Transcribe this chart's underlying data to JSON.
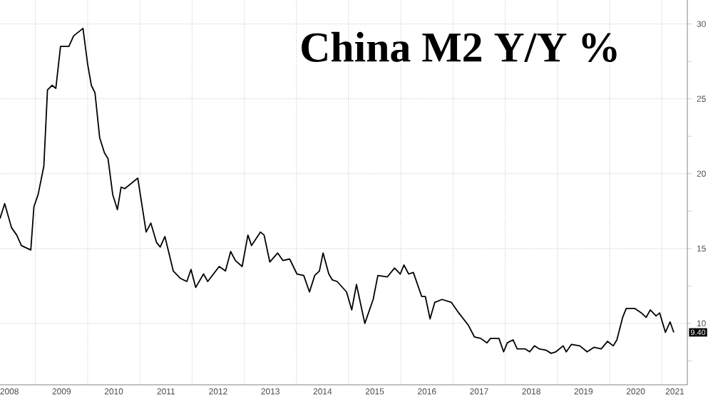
{
  "chart_data": {
    "type": "line",
    "title": "China M2 Y/Y %",
    "x": [
      2008.32,
      2008.41,
      2008.54,
      2008.64,
      2008.73,
      2008.91,
      2008.97,
      2009.05,
      2009.16,
      2009.23,
      2009.32,
      2009.39,
      2009.48,
      2009.64,
      2009.73,
      2009.91,
      2010.0,
      2010.07,
      2010.14,
      2010.23,
      2010.32,
      2010.39,
      2010.48,
      2010.57,
      2010.64,
      2010.71,
      2010.96,
      2011.12,
      2011.21,
      2011.32,
      2011.39,
      2011.48,
      2011.64,
      2011.78,
      2011.9,
      2011.98,
      2012.07,
      2012.22,
      2012.3,
      2012.52,
      2012.64,
      2012.74,
      2012.83,
      2012.96,
      2013.07,
      2013.14,
      2013.31,
      2013.38,
      2013.49,
      2013.64,
      2013.74,
      2013.87,
      2014.01,
      2014.14,
      2014.25,
      2014.35,
      2014.44,
      2014.51,
      2014.62,
      2014.69,
      2014.78,
      2014.96,
      2015.06,
      2015.15,
      2015.31,
      2015.47,
      2015.56,
      2015.74,
      2015.88,
      2015.99,
      2016.06,
      2016.15,
      2016.24,
      2016.4,
      2016.47,
      2016.56,
      2016.65,
      2016.79,
      2016.97,
      2017.11,
      2017.29,
      2017.41,
      2017.53,
      2017.65,
      2017.72,
      2017.88,
      2017.97,
      2018.04,
      2018.15,
      2018.23,
      2018.38,
      2018.47,
      2018.56,
      2018.65,
      2018.79,
      2018.88,
      2018.97,
      2019.11,
      2019.17,
      2019.27,
      2019.43,
      2019.57,
      2019.7,
      2019.84,
      2019.96,
      2020.07,
      2020.14,
      2020.25,
      2020.32,
      2020.48,
      2020.61,
      2020.7,
      2020.78,
      2020.89,
      2020.96,
      2021.07,
      2021.16,
      2021.23
    ],
    "series": [
      {
        "color": "#000000",
        "values": [
          17.0,
          18.0,
          16.4,
          15.9,
          15.2,
          14.9,
          17.8,
          18.6,
          20.5,
          25.6,
          25.9,
          25.7,
          28.5,
          28.5,
          29.2,
          29.7,
          27.3,
          25.9,
          25.4,
          22.4,
          21.4,
          21.0,
          18.6,
          17.6,
          19.1,
          19.0,
          19.7,
          16.1,
          16.7,
          15.4,
          15.1,
          15.8,
          13.5,
          13.0,
          12.8,
          13.6,
          12.4,
          13.3,
          12.8,
          13.8,
          13.5,
          14.8,
          14.2,
          13.8,
          15.9,
          15.2,
          16.1,
          15.9,
          14.1,
          14.7,
          14.2,
          14.3,
          13.3,
          13.2,
          12.1,
          13.2,
          13.5,
          14.7,
          13.3,
          12.9,
          12.8,
          12.1,
          10.9,
          12.6,
          10.0,
          11.6,
          13.2,
          13.1,
          13.7,
          13.3,
          13.9,
          13.3,
          13.4,
          11.8,
          11.8,
          10.3,
          11.4,
          11.6,
          11.4,
          10.7,
          9.9,
          9.1,
          9.0,
          8.7,
          9.0,
          9.0,
          8.1,
          8.7,
          8.9,
          8.3,
          8.3,
          8.1,
          8.5,
          8.3,
          8.2,
          8.0,
          8.1,
          8.5,
          8.1,
          8.6,
          8.5,
          8.1,
          8.4,
          8.3,
          8.8,
          8.5,
          8.9,
          10.4,
          11.0,
          11.0,
          10.7,
          10.4,
          10.9,
          10.5,
          10.7,
          9.4,
          10.1,
          9.4
        ]
      }
    ],
    "annotations": [
      {
        "text": "9.40",
        "y": 9.4
      }
    ],
    "xlim": [
      2008.32,
      2021.49
    ],
    "xticks": [
      {
        "value": 2008.5,
        "label": "2008"
      },
      {
        "value": 2009,
        "label": null
      },
      {
        "value": 2009.5,
        "label": "2009"
      },
      {
        "value": 2010,
        "label": null
      },
      {
        "value": 2010.5,
        "label": "2010"
      },
      {
        "value": 2011,
        "label": null
      },
      {
        "value": 2011.5,
        "label": "2011"
      },
      {
        "value": 2012,
        "label": null
      },
      {
        "value": 2012.5,
        "label": "2012"
      },
      {
        "value": 2013,
        "label": null
      },
      {
        "value": 2013.5,
        "label": "2013"
      },
      {
        "value": 2014,
        "label": null
      },
      {
        "value": 2014.5,
        "label": "2014"
      },
      {
        "value": 2015,
        "label": null
      },
      {
        "value": 2015.5,
        "label": "2015"
      },
      {
        "value": 2016,
        "label": null
      },
      {
        "value": 2016.5,
        "label": "2016"
      },
      {
        "value": 2017,
        "label": null
      },
      {
        "value": 2017.5,
        "label": "2017"
      },
      {
        "value": 2018,
        "label": null
      },
      {
        "value": 2018.5,
        "label": "2018"
      },
      {
        "value": 2019,
        "label": null
      },
      {
        "value": 2019.5,
        "label": "2019"
      },
      {
        "value": 2020,
        "label": null
      },
      {
        "value": 2020.5,
        "label": "2020"
      },
      {
        "value": 2021,
        "label": null
      },
      {
        "value": 2021.25,
        "label": "2021"
      }
    ],
    "ylim": [
      5.9,
      31.6
    ],
    "yticks": [
      {
        "value": 7.5,
        "label": null
      },
      10,
      {
        "value": 12.5,
        "label": null
      },
      15,
      {
        "value": 17.5,
        "label": null
      },
      20,
      {
        "value": 22.5,
        "label": null
      },
      25,
      {
        "value": 27.5,
        "label": null
      },
      30
    ],
    "grid": true,
    "line_style": "solid",
    "marker": "none"
  }
}
